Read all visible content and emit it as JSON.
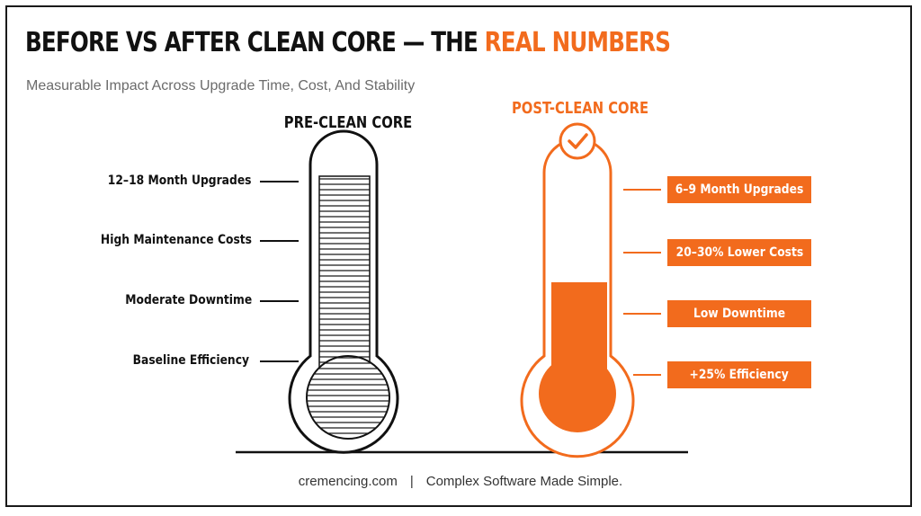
{
  "title": {
    "main": "BEFORE VS AFTER CLEAN CORE — THE ",
    "accent": "REAL NUMBERS"
  },
  "subtitle": "Measurable Impact Across Upgrade Time, Cost, And Stability",
  "pre": {
    "heading": "PRE-CLEAN CORE",
    "labels": [
      "12–18 Month Upgrades",
      "High Maintenance Costs",
      "Moderate Downtime",
      "Baseline Efficiency"
    ]
  },
  "post": {
    "heading": "POST-CLEAN CORE",
    "labels": [
      "6–9 Month Upgrades",
      "20–30% Lower Costs",
      "Low Downtime",
      "+25% Efficiency"
    ],
    "check_icon": "check-circle-icon"
  },
  "footer": {
    "site": "cremencing.com",
    "separator": "|",
    "tagline": "Complex Software Made Simple."
  },
  "colors": {
    "accent": "#f26b1d",
    "ink": "#111111",
    "muted": "#6b6b6b"
  }
}
